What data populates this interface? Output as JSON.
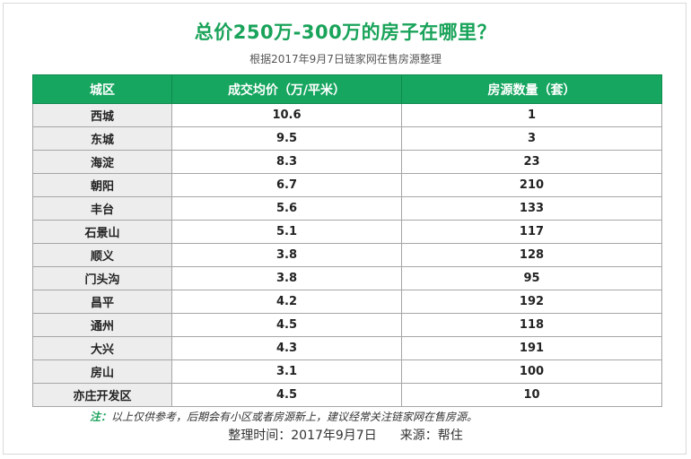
{
  "title": "总价250万-300万的房子在哪里？",
  "subtitle": "根据2017年9月7日链家网在售房源整理",
  "table": {
    "headers": [
      "城区",
      "成交均价（万/平米）",
      "房源数量（套）"
    ],
    "rows": [
      [
        "西城",
        "10.6",
        "1"
      ],
      [
        "东城",
        "9.5",
        "3"
      ],
      [
        "海淀",
        "8.3",
        "23"
      ],
      [
        "朝阳",
        "6.7",
        "210"
      ],
      [
        "丰台",
        "5.6",
        "133"
      ],
      [
        "石景山",
        "5.1",
        "117"
      ],
      [
        "顺义",
        "3.8",
        "128"
      ],
      [
        "门头沟",
        "3.8",
        "95"
      ],
      [
        "昌平",
        "4.2",
        "192"
      ],
      [
        "通州",
        "4.5",
        "118"
      ],
      [
        "大兴",
        "4.3",
        "191"
      ],
      [
        "房山",
        "3.1",
        "100"
      ],
      [
        "亦庄开发区",
        "4.5",
        "10"
      ]
    ]
  },
  "note": {
    "label": "注：",
    "text": "以上仅供参考，后期会有小区或者房源新上，建议经常关注链家网在售房源。"
  },
  "footer": {
    "date_text": "整理时间：2017年9月7日",
    "source_text": "来源：帮住"
  },
  "colors": {
    "accent": "#1aa35a",
    "header_bg": "#17a660",
    "district_bg": "#ededed"
  }
}
